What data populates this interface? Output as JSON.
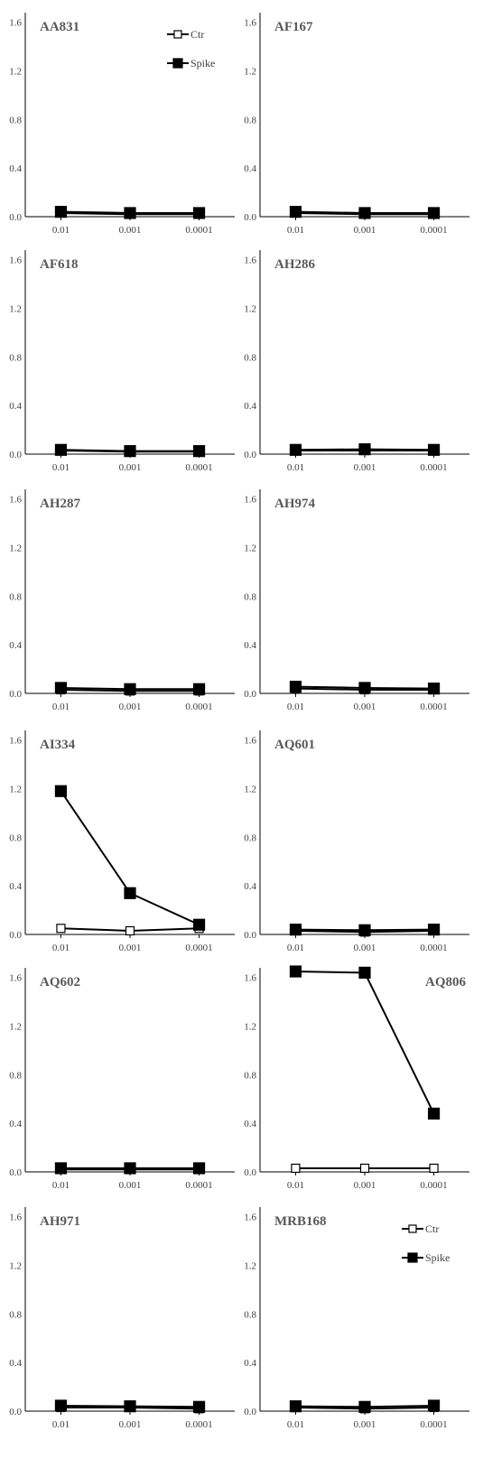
{
  "chart_data": {
    "type": "line",
    "layout": "small-multiples",
    "x": [
      "0.01",
      "0.001",
      "0.0001"
    ],
    "yticks": [
      "0.0",
      "0.4",
      "0.8",
      "1.2",
      "1.6"
    ],
    "ylim": [
      0,
      1.65
    ],
    "series_names": [
      "Ctr",
      "Spike"
    ],
    "colors": {
      "line": "#000000",
      "axis": "#000000",
      "text": "#404040",
      "title": "#595959",
      "ctr_fill": "#ffffff",
      "spike_fill": "#000000"
    },
    "panels": [
      {
        "title": "AA831",
        "ctr": [
          0.03,
          0.02,
          0.02
        ],
        "spike": [
          0.04,
          0.03,
          0.03
        ],
        "legend": true
      },
      {
        "title": "AF167",
        "ctr": [
          0.03,
          0.02,
          0.02
        ],
        "spike": [
          0.04,
          0.03,
          0.03
        ]
      },
      {
        "title": "AF618",
        "ctr": [
          0.03,
          0.02,
          0.02
        ],
        "spike": [
          0.035,
          0.025,
          0.025
        ]
      },
      {
        "title": "AH286",
        "ctr": [
          0.03,
          0.03,
          0.03
        ],
        "spike": [
          0.035,
          0.04,
          0.035
        ]
      },
      {
        "title": "AH287",
        "ctr": [
          0.03,
          0.02,
          0.02
        ],
        "spike": [
          0.045,
          0.035,
          0.035
        ]
      },
      {
        "title": "AH974",
        "ctr": [
          0.04,
          0.03,
          0.03
        ],
        "spike": [
          0.055,
          0.045,
          0.04
        ]
      },
      {
        "title": "AI334",
        "ctr": [
          0.05,
          0.03,
          0.05
        ],
        "spike": [
          1.18,
          0.34,
          0.08
        ]
      },
      {
        "title": "AQ601",
        "ctr": [
          0.03,
          0.02,
          0.03
        ],
        "spike": [
          0.04,
          0.035,
          0.04
        ]
      },
      {
        "title": "AQ602",
        "ctr": [
          0.02,
          0.02,
          0.02
        ],
        "spike": [
          0.03,
          0.03,
          0.03
        ]
      },
      {
        "title": "AQ806",
        "ctr": [
          0.03,
          0.03,
          0.03
        ],
        "spike": [
          1.65,
          1.64,
          0.48
        ],
        "title_right": true
      },
      {
        "title": "AH971",
        "ctr": [
          0.03,
          0.03,
          0.02
        ],
        "spike": [
          0.045,
          0.04,
          0.035
        ]
      },
      {
        "title": "MRB168",
        "ctr": [
          0.03,
          0.02,
          0.03
        ],
        "spike": [
          0.04,
          0.035,
          0.045
        ],
        "legend": true
      }
    ]
  }
}
